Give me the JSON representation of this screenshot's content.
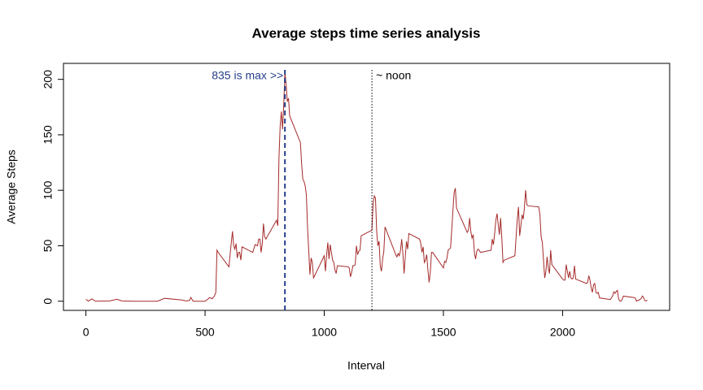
{
  "chart_data": {
    "type": "line",
    "title": "Average steps time series analysis",
    "x_label": "Interval",
    "y_label": "Average Steps",
    "color": "#a52a2a",
    "xlim": [
      -94.2,
      2449.2
    ],
    "ylim": [
      -8.25,
      214.4
    ],
    "xticks": [
      0,
      500,
      1000,
      1500,
      2000
    ],
    "yticks": [
      0,
      50,
      100,
      150,
      200
    ],
    "x": [
      0,
      10,
      25,
      40,
      55,
      100,
      130,
      150,
      200,
      230,
      300,
      330,
      400,
      420,
      435,
      440,
      450,
      500,
      520,
      530,
      540,
      545,
      550,
      555,
      600,
      610,
      615,
      620,
      625,
      630,
      635,
      640,
      645,
      650,
      655,
      700,
      710,
      720,
      725,
      730,
      735,
      740,
      745,
      750,
      755,
      800,
      805,
      810,
      815,
      820,
      825,
      830,
      835,
      840,
      845,
      850,
      855,
      900,
      905,
      910,
      915,
      920,
      925,
      930,
      935,
      940,
      945,
      950,
      955,
      1000,
      1005,
      1010,
      1015,
      1020,
      1025,
      1030,
      1035,
      1040,
      1045,
      1050,
      1055,
      1100,
      1105,
      1110,
      1115,
      1120,
      1125,
      1130,
      1135,
      1140,
      1145,
      1150,
      1155,
      1200,
      1205,
      1210,
      1215,
      1220,
      1225,
      1230,
      1235,
      1240,
      1245,
      1250,
      1255,
      1300,
      1305,
      1310,
      1315,
      1320,
      1325,
      1330,
      1335,
      1340,
      1345,
      1350,
      1355,
      1400,
      1405,
      1410,
      1415,
      1420,
      1425,
      1430,
      1435,
      1440,
      1445,
      1450,
      1455,
      1500,
      1505,
      1510,
      1515,
      1520,
      1525,
      1530,
      1535,
      1540,
      1545,
      1550,
      1555,
      1600,
      1605,
      1610,
      1615,
      1620,
      1625,
      1630,
      1635,
      1640,
      1645,
      1650,
      1655,
      1700,
      1705,
      1710,
      1715,
      1720,
      1725,
      1730,
      1735,
      1740,
      1745,
      1750,
      1755,
      1800,
      1805,
      1810,
      1815,
      1820,
      1825,
      1830,
      1835,
      1840,
      1845,
      1850,
      1855,
      1900,
      1905,
      1910,
      1915,
      1920,
      1925,
      1930,
      1935,
      1940,
      1945,
      1950,
      1955,
      2000,
      2005,
      2010,
      2015,
      2020,
      2025,
      2030,
      2035,
      2040,
      2045,
      2050,
      2055,
      2100,
      2105,
      2110,
      2115,
      2120,
      2125,
      2130,
      2135,
      2140,
      2145,
      2150,
      2155,
      2200,
      2205,
      2210,
      2215,
      2220,
      2225,
      2230,
      2235,
      2240,
      2245,
      2250,
      2255,
      2300,
      2305,
      2310,
      2315,
      2320,
      2325,
      2330,
      2335,
      2340,
      2345,
      2350,
      2355
    ],
    "values": [
      1.7,
      0.1,
      2.1,
      0,
      0.1,
      0.3,
      1.8,
      0.3,
      0,
      0,
      0,
      2.6,
      1.2,
      0.3,
      0.7,
      3.5,
      0,
      0,
      3.3,
      2.2,
      5,
      8,
      46,
      44,
      31,
      53,
      63,
      50,
      47,
      52,
      39,
      44,
      44,
      37,
      49,
      44,
      51,
      50,
      56,
      56,
      44,
      52,
      70,
      58,
      56,
      73,
      68,
      129,
      158,
      171,
      155,
      177,
      206,
      196,
      180,
      183,
      167,
      143,
      124,
      110,
      108,
      104,
      96,
      66,
      45,
      24,
      39,
      35,
      21,
      41,
      27,
      42,
      53,
      38,
      51,
      44,
      37,
      35,
      28,
      25,
      32,
      31,
      30,
      22,
      26,
      32,
      32,
      33,
      50,
      42,
      45,
      46,
      59,
      64,
      88,
      95,
      93,
      63,
      50,
      54,
      32,
      27,
      38,
      45,
      67,
      42,
      40,
      43,
      41,
      46,
      56,
      43,
      25,
      40,
      54,
      47,
      61,
      56,
      52,
      44,
      49,
      35,
      37,
      42,
      28,
      17,
      26,
      44,
      44,
      30,
      36,
      35,
      39,
      46,
      47,
      48,
      65,
      82,
      98,
      102,
      84,
      62,
      64,
      75,
      63,
      57,
      60,
      44,
      38,
      45,
      47,
      46,
      44,
      46,
      56,
      51,
      61,
      73,
      79,
      69,
      60,
      75,
      57,
      35,
      37,
      41,
      58,
      74,
      85,
      59,
      68,
      78,
      74,
      85,
      100,
      87,
      86,
      85,
      78,
      58,
      53,
      37,
      21,
      27,
      40,
      30,
      25,
      46,
      33,
      20,
      19,
      19,
      33,
      27,
      21,
      27,
      21,
      20,
      21,
      32,
      20,
      16,
      17,
      23,
      19,
      12,
      8,
      15,
      16,
      8,
      7,
      8,
      3,
      1.5,
      3,
      4.8,
      8.5,
      7.1,
      8.7,
      9.8,
      2.2,
      0.3,
      0.1,
      1.6,
      4.6,
      3.3,
      2.8,
      0,
      0.8,
      1,
      1.6,
      2.6,
      4.7,
      3.3,
      0.6,
      0.2,
      1.1
    ],
    "annotations": [
      {
        "x": 835,
        "label": "835 is max >>",
        "color": "#27408b",
        "style": "dashed",
        "side": "left"
      },
      {
        "x": 1200,
        "label": "~ noon",
        "color": "#000000",
        "style": "dotted",
        "side": "right"
      }
    ]
  }
}
